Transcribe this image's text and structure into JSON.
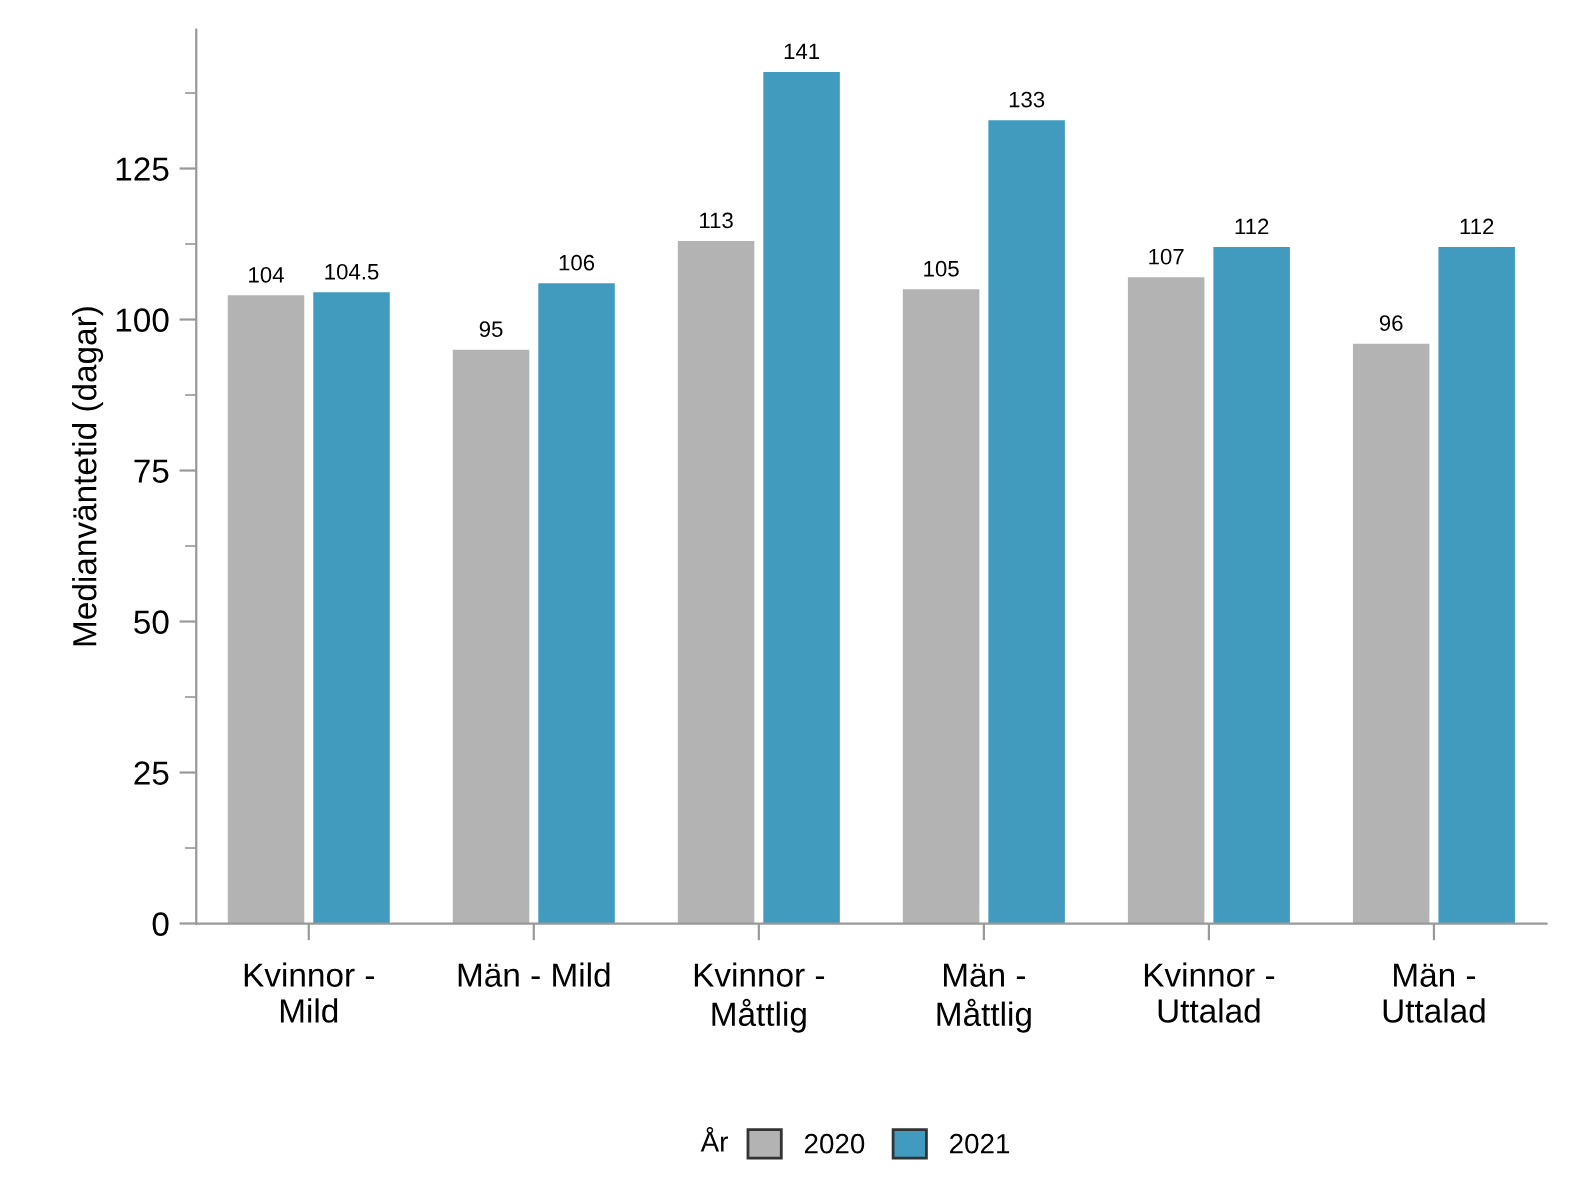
{
  "chart_data": {
    "type": "bar",
    "ylabel": "Medianväntetid (dagar)",
    "legend_title": "År",
    "categories": [
      "Kvinnor -\nMild",
      "Män - Mild",
      "Kvinnor -\nMåttlig",
      "Män -\nMåttlig",
      "Kvinnor -\nUttalad",
      "Män -\nUttalad"
    ],
    "series": [
      {
        "name": "2020",
        "color": "#b3b3b3",
        "values": [
          104,
          95,
          113,
          105,
          107,
          96
        ]
      },
      {
        "name": "2021",
        "color": "#409bbf",
        "values": [
          104.5,
          106,
          141,
          133,
          112,
          112
        ]
      }
    ],
    "ylim": [
      0,
      148
    ],
    "yticks": [
      0,
      25,
      50,
      75,
      100,
      125
    ],
    "grid": false,
    "legend": "bottom",
    "data_labels": true
  }
}
